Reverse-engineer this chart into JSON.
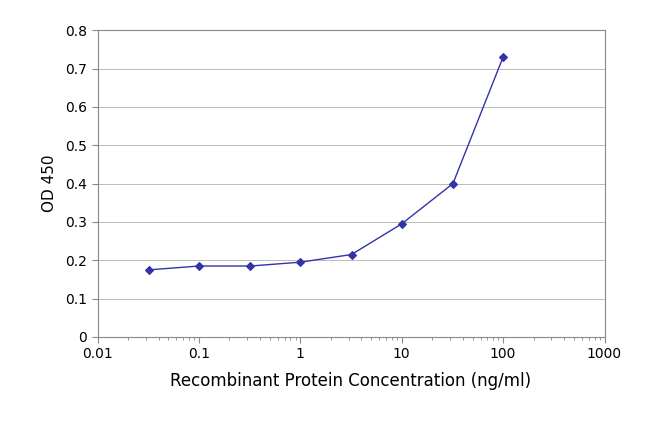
{
  "x": [
    0.032,
    0.1,
    0.32,
    1.0,
    3.2,
    10.0,
    32.0,
    100.0
  ],
  "y": [
    0.175,
    0.185,
    0.185,
    0.195,
    0.215,
    0.295,
    0.4,
    0.73
  ],
  "line_color": "#3333AA",
  "marker": "D",
  "marker_size": 4,
  "marker_facecolor": "#3333AA",
  "xlabel": "Recombinant Protein Concentration (ng/ml)",
  "ylabel": "OD 450",
  "xlim": [
    0.01,
    1000
  ],
  "ylim": [
    0,
    0.8
  ],
  "yticks": [
    0,
    0.1,
    0.2,
    0.3,
    0.4,
    0.5,
    0.6,
    0.7,
    0.8
  ],
  "background_color": "#ffffff",
  "plot_bg_color": "#ffffff",
  "grid_color": "#bbbbbb",
  "spine_color": "#888888",
  "linewidth": 1.0,
  "xlabel_fontsize": 12,
  "ylabel_fontsize": 11,
  "tick_fontsize": 10
}
